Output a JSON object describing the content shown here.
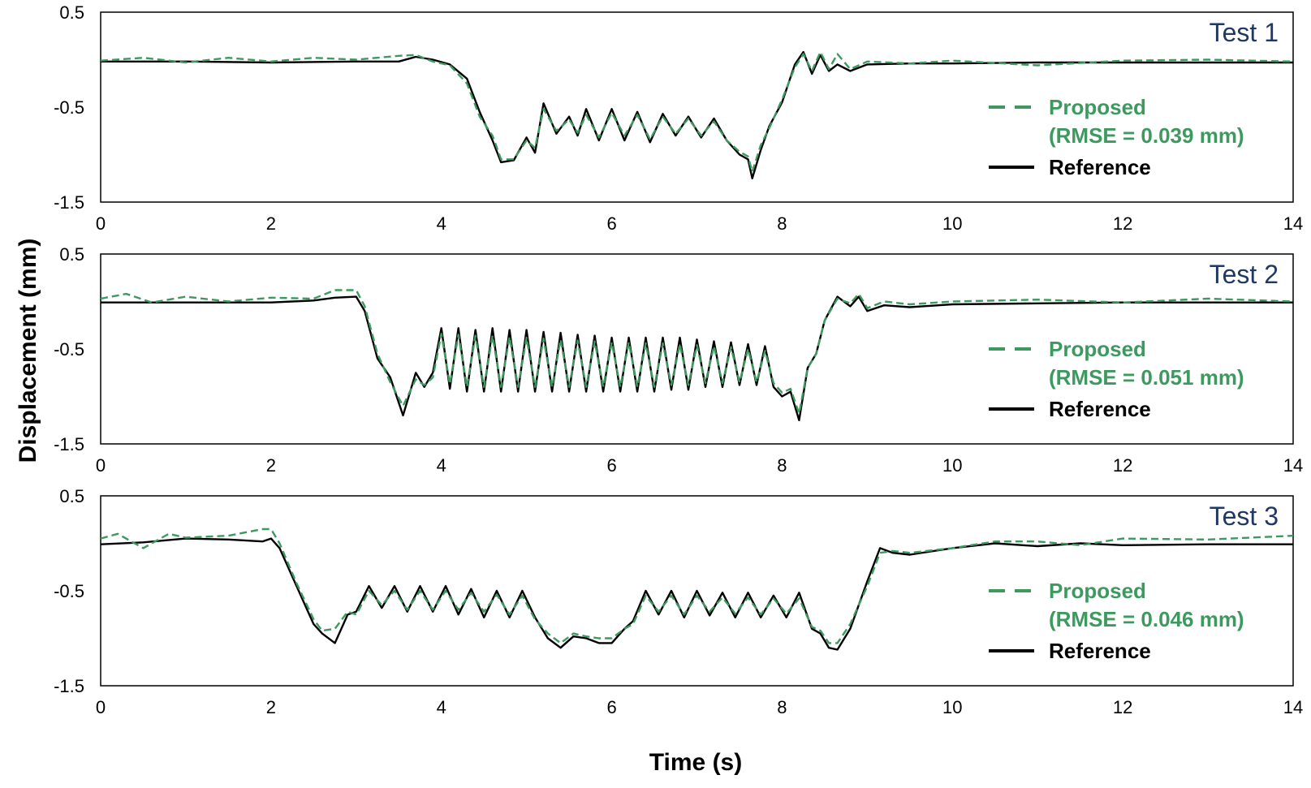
{
  "chart_data": {
    "type": "line",
    "xlabel": "Time (s)",
    "ylabel": "Displacement (mm)",
    "xlim": [
      0,
      14
    ],
    "ylim": [
      -1.5,
      0.5
    ],
    "x_ticks": [
      "0",
      "2",
      "4",
      "6",
      "8",
      "10",
      "12",
      "14"
    ],
    "y_ticks": [
      "0.5",
      "-0.5",
      "-1.5"
    ],
    "grid": false,
    "legend_placement": "right",
    "colors": {
      "proposed": "#3c9a5f",
      "reference": "#000000",
      "title": "#1f3864"
    },
    "panels": [
      {
        "title": "Test 1",
        "legend": [
          "Proposed",
          "(RMSE = 0.039 mm)",
          "Reference"
        ],
        "series": [
          {
            "name": "Reference",
            "style": "solid",
            "x": [
              0,
              1,
              2,
              3,
              3.5,
              3.7,
              3.9,
              4.1,
              4.3,
              4.45,
              4.6,
              4.7,
              4.85,
              5.0,
              5.1,
              5.2,
              5.35,
              5.5,
              5.6,
              5.7,
              5.85,
              6.0,
              6.15,
              6.3,
              6.45,
              6.6,
              6.75,
              6.9,
              7.05,
              7.2,
              7.35,
              7.5,
              7.6,
              7.65,
              7.75,
              7.85,
              8.0,
              8.15,
              8.25,
              8.35,
              8.45,
              8.55,
              8.65,
              8.8,
              9.0,
              9.5,
              10,
              11,
              12,
              13,
              14
            ],
            "y": [
              -0.02,
              -0.02,
              -0.03,
              -0.02,
              -0.02,
              0.03,
              0.0,
              -0.05,
              -0.2,
              -0.55,
              -0.85,
              -1.08,
              -1.06,
              -0.82,
              -0.98,
              -0.46,
              -0.78,
              -0.6,
              -0.8,
              -0.52,
              -0.85,
              -0.52,
              -0.85,
              -0.55,
              -0.87,
              -0.57,
              -0.8,
              -0.6,
              -0.82,
              -0.62,
              -0.85,
              -1.0,
              -1.05,
              -1.25,
              -0.95,
              -0.7,
              -0.45,
              -0.05,
              0.08,
              -0.15,
              0.05,
              -0.12,
              -0.05,
              -0.12,
              -0.05,
              -0.04,
              -0.04,
              -0.03,
              -0.03,
              -0.03,
              -0.03
            ]
          },
          {
            "name": "Proposed",
            "style": "dashed",
            "x": [
              0,
              0.5,
              1,
              1.5,
              2,
              2.5,
              3,
              3.5,
              3.7,
              3.9,
              4.1,
              4.3,
              4.45,
              4.6,
              4.7,
              4.85,
              5.0,
              5.1,
              5.2,
              5.35,
              5.5,
              5.6,
              5.7,
              5.85,
              6.0,
              6.15,
              6.3,
              6.45,
              6.6,
              6.75,
              6.9,
              7.05,
              7.2,
              7.35,
              7.5,
              7.6,
              7.65,
              7.75,
              7.85,
              8.0,
              8.15,
              8.25,
              8.35,
              8.45,
              8.55,
              8.65,
              8.8,
              9.0,
              9.5,
              10,
              11,
              12,
              13,
              14
            ],
            "y": [
              -0.01,
              0.02,
              -0.03,
              0.02,
              -0.02,
              0.02,
              0.0,
              0.04,
              0.05,
              -0.02,
              -0.06,
              -0.25,
              -0.6,
              -0.8,
              -1.05,
              -1.05,
              -0.85,
              -0.93,
              -0.52,
              -0.75,
              -0.63,
              -0.77,
              -0.58,
              -0.82,
              -0.56,
              -0.8,
              -0.58,
              -0.84,
              -0.6,
              -0.78,
              -0.62,
              -0.8,
              -0.65,
              -0.85,
              -0.97,
              -1.02,
              -1.18,
              -0.9,
              -0.72,
              -0.42,
              -0.08,
              0.06,
              -0.12,
              0.08,
              -0.1,
              0.06,
              -0.1,
              -0.02,
              -0.04,
              -0.01,
              -0.06,
              -0.01,
              0.0,
              -0.02
            ]
          }
        ]
      },
      {
        "title": "Test 2",
        "legend": [
          "Proposed",
          "(RMSE = 0.051 mm)",
          "Reference"
        ],
        "series": [
          {
            "name": "Reference",
            "style": "solid",
            "x": [
              0,
              1,
              2,
              2.5,
              2.75,
              3.0,
              3.1,
              3.25,
              3.4,
              3.55,
              3.7,
              3.8,
              3.9,
              4.0,
              4.1,
              4.2,
              4.3,
              4.4,
              4.5,
              4.6,
              4.7,
              4.8,
              4.9,
              5.0,
              5.1,
              5.2,
              5.3,
              5.4,
              5.5,
              5.6,
              5.7,
              5.8,
              5.9,
              6.0,
              6.1,
              6.2,
              6.3,
              6.4,
              6.5,
              6.6,
              6.7,
              6.8,
              6.9,
              7.0,
              7.1,
              7.2,
              7.3,
              7.4,
              7.5,
              7.6,
              7.7,
              7.8,
              7.9,
              8.0,
              8.1,
              8.2,
              8.3,
              8.4,
              8.5,
              8.65,
              8.8,
              8.9,
              9.0,
              9.2,
              9.5,
              10,
              11,
              12,
              13,
              14
            ],
            "y": [
              -0.01,
              -0.01,
              -0.01,
              0.01,
              0.04,
              0.05,
              -0.1,
              -0.6,
              -0.8,
              -1.2,
              -0.75,
              -0.9,
              -0.75,
              -0.28,
              -0.92,
              -0.28,
              -0.95,
              -0.3,
              -0.95,
              -0.28,
              -0.95,
              -0.3,
              -0.95,
              -0.3,
              -0.95,
              -0.32,
              -0.95,
              -0.33,
              -0.95,
              -0.35,
              -0.95,
              -0.36,
              -0.95,
              -0.38,
              -0.95,
              -0.38,
              -0.95,
              -0.38,
              -0.95,
              -0.38,
              -0.93,
              -0.38,
              -0.93,
              -0.4,
              -0.9,
              -0.42,
              -0.9,
              -0.43,
              -0.88,
              -0.45,
              -0.88,
              -0.47,
              -0.9,
              -1.0,
              -0.95,
              -1.25,
              -0.7,
              -0.55,
              -0.2,
              0.05,
              -0.05,
              0.05,
              -0.1,
              -0.04,
              -0.06,
              -0.03,
              -0.02,
              -0.01,
              -0.01,
              -0.01
            ]
          },
          {
            "name": "Proposed",
            "style": "dashed",
            "x": [
              0,
              0.3,
              0.6,
              1,
              1.5,
              2,
              2.5,
              2.75,
              3.0,
              3.1,
              3.25,
              3.4,
              3.55,
              3.7,
              3.8,
              3.9,
              4.0,
              4.1,
              4.2,
              4.3,
              4.4,
              4.5,
              4.6,
              4.7,
              4.8,
              4.9,
              5.0,
              5.1,
              5.2,
              5.3,
              5.4,
              5.5,
              5.6,
              5.7,
              5.8,
              5.9,
              6.0,
              6.1,
              6.2,
              6.3,
              6.4,
              6.5,
              6.6,
              6.7,
              6.8,
              6.9,
              7.0,
              7.1,
              7.2,
              7.3,
              7.4,
              7.5,
              7.6,
              7.7,
              7.8,
              7.9,
              8.0,
              8.1,
              8.2,
              8.3,
              8.4,
              8.5,
              8.65,
              8.8,
              8.9,
              9.0,
              9.2,
              9.5,
              10,
              11,
              12,
              13,
              14
            ],
            "y": [
              0.03,
              0.08,
              -0.01,
              0.05,
              0.0,
              0.04,
              0.03,
              0.12,
              0.12,
              -0.05,
              -0.55,
              -0.85,
              -1.1,
              -0.82,
              -0.88,
              -0.8,
              -0.34,
              -0.87,
              -0.35,
              -0.9,
              -0.36,
              -0.9,
              -0.36,
              -0.9,
              -0.37,
              -0.9,
              -0.38,
              -0.9,
              -0.39,
              -0.9,
              -0.4,
              -0.9,
              -0.41,
              -0.9,
              -0.42,
              -0.9,
              -0.43,
              -0.9,
              -0.43,
              -0.9,
              -0.44,
              -0.9,
              -0.44,
              -0.88,
              -0.45,
              -0.88,
              -0.46,
              -0.86,
              -0.47,
              -0.86,
              -0.48,
              -0.85,
              -0.5,
              -0.85,
              -0.52,
              -0.86,
              -0.96,
              -0.92,
              -1.18,
              -0.7,
              -0.55,
              -0.2,
              0.03,
              -0.02,
              0.08,
              -0.07,
              0.0,
              -0.03,
              0.0,
              0.02,
              -0.01,
              0.03,
              0.0
            ]
          }
        ]
      },
      {
        "title": "Test 3",
        "legend": [
          "Proposed",
          "(RMSE = 0.046 mm)",
          "Reference"
        ],
        "series": [
          {
            "name": "Reference",
            "style": "solid",
            "x": [
              0,
              0.5,
              1,
              1.5,
              1.9,
              2.0,
              2.1,
              2.3,
              2.5,
              2.6,
              2.75,
              2.9,
              3.0,
              3.15,
              3.3,
              3.45,
              3.6,
              3.75,
              3.9,
              4.05,
              4.2,
              4.35,
              4.5,
              4.65,
              4.8,
              4.95,
              5.1,
              5.25,
              5.4,
              5.55,
              5.7,
              5.85,
              6.0,
              6.15,
              6.25,
              6.4,
              6.55,
              6.7,
              6.85,
              7.0,
              7.15,
              7.3,
              7.45,
              7.6,
              7.75,
              7.9,
              8.05,
              8.2,
              8.35,
              8.45,
              8.55,
              8.65,
              8.8,
              9.0,
              9.15,
              9.3,
              9.5,
              10,
              10.5,
              11,
              11.5,
              12,
              13,
              14
            ],
            "y": [
              -0.01,
              0.01,
              0.05,
              0.04,
              0.02,
              0.05,
              -0.05,
              -0.45,
              -0.85,
              -0.95,
              -1.05,
              -0.75,
              -0.72,
              -0.45,
              -0.68,
              -0.45,
              -0.72,
              -0.45,
              -0.72,
              -0.45,
              -0.75,
              -0.48,
              -0.78,
              -0.5,
              -0.78,
              -0.5,
              -0.78,
              -1.0,
              -1.1,
              -0.98,
              -1.0,
              -1.05,
              -1.05,
              -0.9,
              -0.82,
              -0.5,
              -0.75,
              -0.5,
              -0.78,
              -0.5,
              -0.76,
              -0.52,
              -0.78,
              -0.52,
              -0.78,
              -0.55,
              -0.78,
              -0.52,
              -0.9,
              -0.95,
              -1.1,
              -1.12,
              -0.9,
              -0.4,
              -0.05,
              -0.1,
              -0.12,
              -0.05,
              0.0,
              -0.03,
              0.0,
              -0.02,
              -0.01,
              -0.01
            ]
          },
          {
            "name": "Proposed",
            "style": "dashed",
            "x": [
              0,
              0.2,
              0.5,
              0.8,
              1.0,
              1.5,
              1.9,
              2.0,
              2.1,
              2.3,
              2.5,
              2.6,
              2.75,
              2.9,
              3.0,
              3.15,
              3.3,
              3.45,
              3.6,
              3.75,
              3.9,
              4.05,
              4.2,
              4.35,
              4.5,
              4.65,
              4.8,
              4.95,
              5.1,
              5.25,
              5.4,
              5.55,
              5.7,
              5.85,
              6.0,
              6.15,
              6.25,
              6.4,
              6.55,
              6.7,
              6.85,
              7.0,
              7.15,
              7.3,
              7.45,
              7.6,
              7.75,
              7.9,
              8.05,
              8.2,
              8.35,
              8.45,
              8.55,
              8.65,
              8.8,
              9.0,
              9.15,
              9.3,
              9.5,
              10,
              10.5,
              11,
              11.5,
              12,
              13,
              14
            ],
            "y": [
              0.05,
              0.1,
              -0.05,
              0.1,
              0.06,
              0.08,
              0.15,
              0.15,
              0.0,
              -0.42,
              -0.8,
              -0.92,
              -0.9,
              -0.72,
              -0.75,
              -0.5,
              -0.65,
              -0.5,
              -0.7,
              -0.5,
              -0.7,
              -0.5,
              -0.7,
              -0.52,
              -0.72,
              -0.54,
              -0.75,
              -0.55,
              -0.8,
              -0.95,
              -1.05,
              -0.95,
              -0.98,
              -1.0,
              -1.0,
              -0.9,
              -0.85,
              -0.55,
              -0.72,
              -0.55,
              -0.75,
              -0.55,
              -0.72,
              -0.57,
              -0.74,
              -0.57,
              -0.75,
              -0.58,
              -0.74,
              -0.58,
              -0.88,
              -0.92,
              -1.05,
              -1.05,
              -0.85,
              -0.45,
              -0.1,
              -0.08,
              -0.1,
              -0.05,
              0.02,
              0.02,
              -0.02,
              0.05,
              0.04,
              0.08
            ]
          }
        ]
      }
    ]
  }
}
